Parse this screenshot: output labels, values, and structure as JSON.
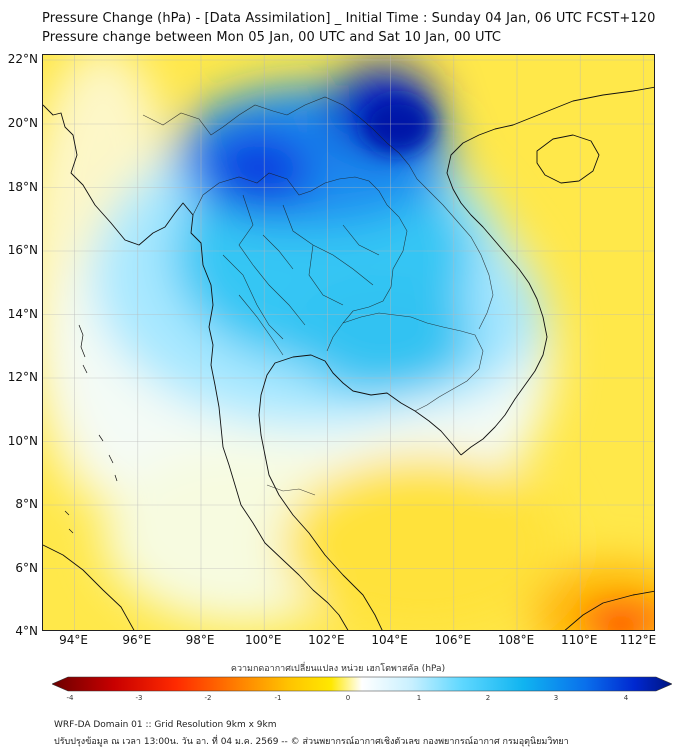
{
  "title_line1": "Pressure Change (hPa) - [Data Assimilation] _ Initial Time : Sunday 04 Jan, 06 UTC FCST+120",
  "title_line2": "Pressure change between Mon 05 Jan, 00 UTC and Sat 10 Jan, 00 UTC",
  "map": {
    "lat_labels": [
      "22°N",
      "20°N",
      "18°N",
      "16°N",
      "14°N",
      "12°N",
      "10°N",
      "8°N",
      "6°N",
      "4°N"
    ],
    "lon_labels": [
      "94°E",
      "96°E",
      "98°E",
      "100°E",
      "102°E",
      "104°E",
      "106°E",
      "108°E",
      "110°E",
      "112°E"
    ],
    "lat_range": [
      4,
      22.2
    ],
    "lon_range": [
      93,
      112.4
    ],
    "field_summary": {
      "max_fall_region": "northern Laos / Vietnam border, down to about +4 hPa rise (dark blue)",
      "max_drop_region": "south China Sea near 110-112°E, 4-5°N (orange, about -2.5 hPa)"
    }
  },
  "colorbar": {
    "title": "ความกดอากาศเปลี่ยนแปลง หน่วย เฮกโตพาสคัล (hPa)",
    "ticks": [
      "-4",
      "-3",
      "-2",
      "-1",
      "0",
      "1",
      "2",
      "3",
      "4"
    ],
    "range": [
      -4,
      4
    ],
    "colors": [
      "#6b0000",
      "#c80000",
      "#ff2a00",
      "#ff7a00",
      "#ffb800",
      "#ffe000",
      "#ffffa0",
      "#ffffff",
      "#c8f0ff",
      "#60d8ff",
      "#10b8f0",
      "#0a7cf0",
      "#0030d8",
      "#001480"
    ]
  },
  "footer": {
    "line1": "WRF-DA Domain 01 :: Grid Resolution 9km x 9km",
    "line2": "ปรับปรุงข้อมูล ณ เวลา 13:00น. วัน อา. ที่ 04 ม.ค. 2569 -- © ส่วนพยากรณ์อากาศเชิงตัวเลข กองพยากรณ์อากาศ กรมอุตุนิยมวิทยา"
  }
}
